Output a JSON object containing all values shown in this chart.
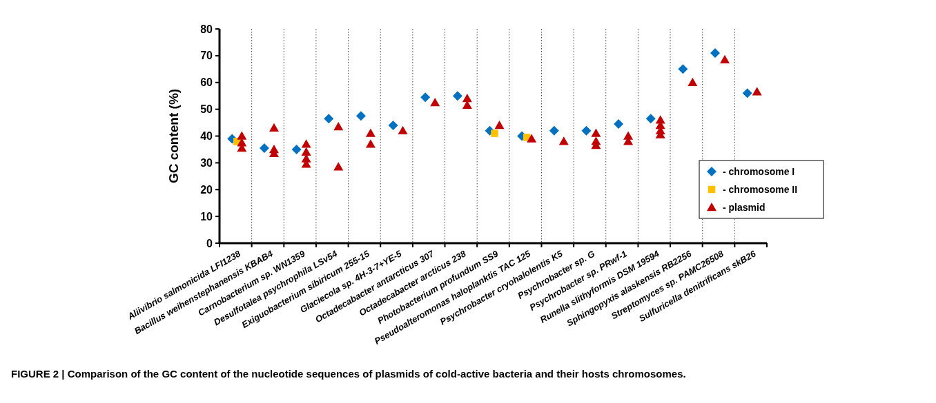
{
  "chart_data": {
    "type": "scatter",
    "ylabel": "GC content (%)",
    "ylim": [
      0,
      80
    ],
    "yticks": [
      0,
      10,
      20,
      30,
      40,
      50,
      60,
      70,
      80
    ],
    "grid": "x",
    "legend": "right",
    "annotations": [
      "FIGURE 2 | Comparison of the GC content of the nucleotide sequences of plasmids of cold-active bacteria and their hosts chromosomes."
    ],
    "categories": [
      "Aliivibrio salmonicida LFI1238",
      "Bacillus weihenstephanensis KBAB4",
      "Carnobacterium sp. WN1359",
      "Desulfotalea psychrophila LSv54",
      "Exiguobacterium sibiricum 255-15",
      "Glaciecola sp. 4H-3-7+YE-5",
      "Octadecabacter antarcticus 307",
      "Octadecabacter arcticus 238",
      "Photobacterium profundum SS9",
      "Pseudoalteromonas haloplanktis TAC 125",
      "Psychrobacter cryohalolentis K5",
      "Psychrobacter sp. G",
      "Psychrobacter sp. PRwf-1",
      "Runella slithyformis DSM 19594",
      "Sphingopyxis alaskensis RB2256",
      "Streptomyces sp. PAMC26508",
      "Sulfuricella denitrificans skB26"
    ],
    "series": [
      {
        "name": "- chromosome I",
        "color": "#0070c0",
        "marker": "diamond",
        "x": [
          "Aliivibrio salmonicida LFI1238",
          "Bacillus weihenstephanensis KBAB4",
          "Carnobacterium sp. WN1359",
          "Desulfotalea psychrophila LSv54",
          "Exiguobacterium sibiricum 255-15",
          "Glaciecola sp. 4H-3-7+YE-5",
          "Octadecabacter antarcticus 307",
          "Octadecabacter arcticus 238",
          "Photobacterium profundum SS9",
          "Pseudoalteromonas haloplanktis TAC 125",
          "Psychrobacter cryohalolentis K5",
          "Psychrobacter sp. G",
          "Psychrobacter sp. PRwf-1",
          "Runella slithyformis DSM 19594",
          "Sphingopyxis alaskensis RB2256",
          "Streptomyces sp. PAMC26508",
          "Sulfuricella denitrificans skB26"
        ],
        "values": [
          39,
          35.5,
          35,
          46.5,
          47.5,
          44,
          54.5,
          55,
          42,
          40,
          42,
          42,
          44.5,
          46.5,
          65,
          71,
          56
        ]
      },
      {
        "name": "- chromosome II",
        "color": "#ffc000",
        "marker": "square",
        "x": [
          "Aliivibrio salmonicida LFI1238",
          "Photobacterium profundum SS9",
          "Pseudoalteromonas haloplanktis TAC 125"
        ],
        "values": [
          38,
          41,
          39.5
        ]
      },
      {
        "name": "- plasmid",
        "color": "#c00000",
        "marker": "triangle",
        "x": [
          "Aliivibrio salmonicida LFI1238",
          "Aliivibrio salmonicida LFI1238",
          "Aliivibrio salmonicida LFI1238",
          "Bacillus weihenstephanensis KBAB4",
          "Bacillus weihenstephanensis KBAB4",
          "Bacillus weihenstephanensis KBAB4",
          "Carnobacterium sp. WN1359",
          "Carnobacterium sp. WN1359",
          "Carnobacterium sp. WN1359",
          "Carnobacterium sp. WN1359",
          "Desulfotalea psychrophila LSv54",
          "Desulfotalea psychrophila LSv54",
          "Exiguobacterium sibiricum 255-15",
          "Exiguobacterium sibiricum 255-15",
          "Glaciecola sp. 4H-3-7+YE-5",
          "Octadecabacter antarcticus 307",
          "Octadecabacter arcticus 238",
          "Octadecabacter arcticus 238",
          "Photobacterium profundum SS9",
          "Pseudoalteromonas haloplanktis TAC 125",
          "Psychrobacter cryohalolentis K5",
          "Psychrobacter sp. G",
          "Psychrobacter sp. G",
          "Psychrobacter sp. G",
          "Psychrobacter sp. PRwf-1",
          "Psychrobacter sp. PRwf-1",
          "Runella slithyformis DSM 19594",
          "Runella slithyformis DSM 19594",
          "Runella slithyformis DSM 19594",
          "Runella slithyformis DSM 19594",
          "Sphingopyxis alaskensis RB2256",
          "Streptomyces sp. PAMC26508",
          "Sulfuricella denitrificans skB26"
        ],
        "values": [
          40,
          37.5,
          35.5,
          43,
          35,
          33.5,
          37,
          34,
          31.5,
          29.5,
          43.5,
          28.5,
          41,
          37,
          42,
          52.5,
          54,
          51.5,
          44,
          39,
          38,
          41,
          38,
          36.5,
          40,
          38,
          46,
          44,
          42,
          40.5,
          60,
          68.5,
          56.5
        ]
      }
    ]
  }
}
